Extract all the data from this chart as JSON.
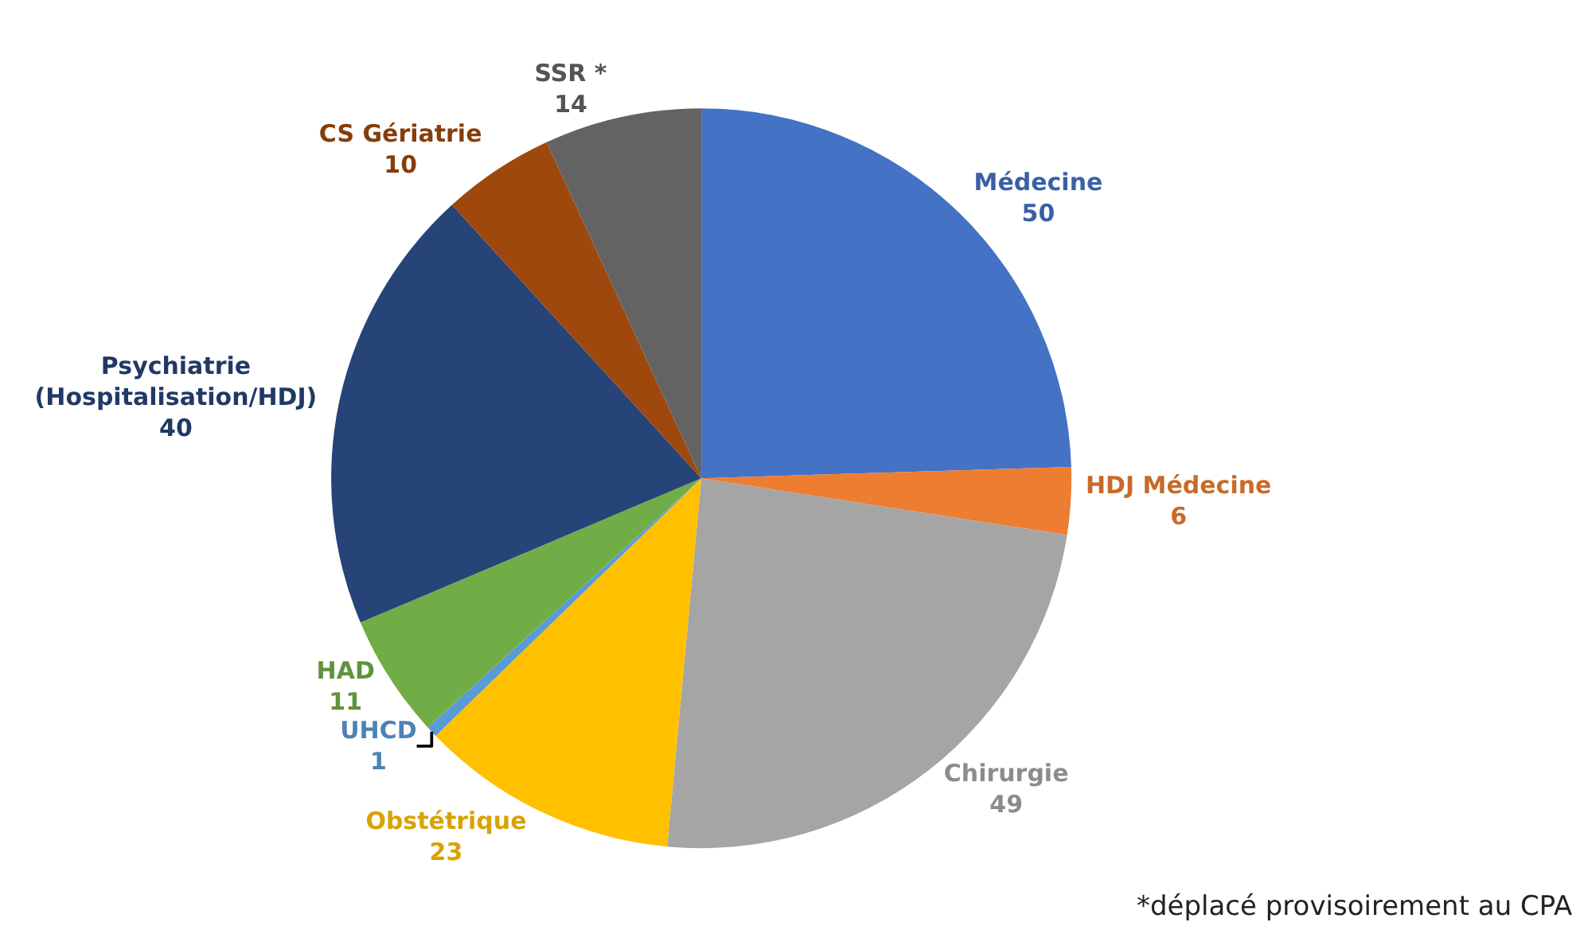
{
  "chart_data": {
    "type": "pie",
    "categories": [
      "Médecine",
      "HDJ Médecine",
      "Chirurgie",
      "Obstétrique",
      "UHCD",
      "HAD",
      "Psychiatrie (Hospitalisation/HDJ)",
      "CS Gériatrie",
      "SSR *"
    ],
    "values": [
      50,
      6,
      49,
      23,
      1,
      11,
      40,
      10,
      14
    ],
    "colors": [
      "#4472c4",
      "#ed7d31",
      "#a5a5a5",
      "#ffc000",
      "#5b9bd5",
      "#70ad47",
      "#264478",
      "#9e480e",
      "#636363"
    ],
    "data_labels": true,
    "legend": false,
    "annotations": [
      "*déplacé provisoirement au CPA"
    ]
  }
}
